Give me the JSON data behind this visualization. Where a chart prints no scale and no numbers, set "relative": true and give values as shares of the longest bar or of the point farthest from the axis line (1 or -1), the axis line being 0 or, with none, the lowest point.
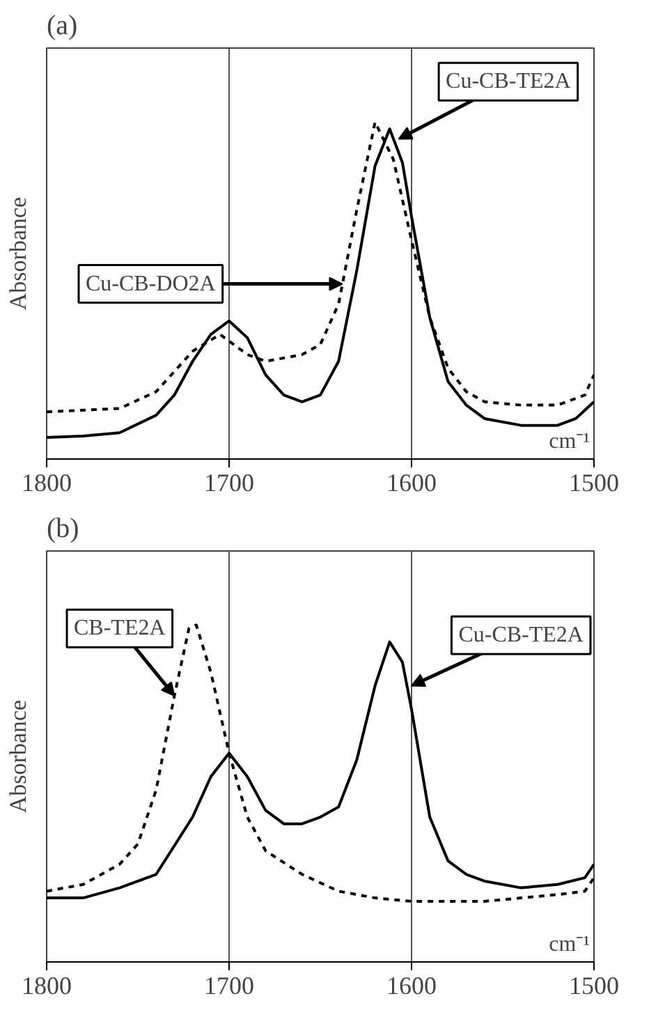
{
  "chart_data": [
    {
      "type": "line",
      "title": "(a)",
      "ylabel": "Absorbance",
      "xlabel": "cm⁻¹",
      "relative": true,
      "xlim": [
        1800,
        1500
      ],
      "xticks": [
        1800,
        1700,
        1600,
        1500
      ],
      "grid": "x",
      "series": [
        {
          "color": "#000000",
          "line_style": "solid",
          "x": [
            1800,
            1780,
            1760,
            1740,
            1730,
            1720,
            1710,
            1700,
            1690,
            1680,
            1670,
            1660,
            1650,
            1640,
            1630,
            1620,
            1612,
            1605,
            1600,
            1590,
            1580,
            1570,
            1560,
            1540,
            1520,
            1510,
            1500
          ],
          "values": [
            0.064,
            0.068,
            0.078,
            0.13,
            0.19,
            0.29,
            0.37,
            0.41,
            0.36,
            0.25,
            0.19,
            0.17,
            0.19,
            0.29,
            0.56,
            0.87,
            0.98,
            0.88,
            0.72,
            0.42,
            0.23,
            0.16,
            0.12,
            0.1,
            0.1,
            0.12,
            0.17
          ]
        },
        {
          "color": "#000000",
          "line_style": "dashed",
          "x": [
            1800,
            1760,
            1740,
            1720,
            1705,
            1690,
            1680,
            1660,
            1650,
            1640,
            1630,
            1620,
            1610,
            1600,
            1590,
            1580,
            1570,
            1560,
            1540,
            1520,
            1505,
            1500
          ],
          "values": [
            0.14,
            0.15,
            0.2,
            0.32,
            0.37,
            0.31,
            0.29,
            0.31,
            0.34,
            0.46,
            0.74,
            1.0,
            0.89,
            0.65,
            0.42,
            0.27,
            0.2,
            0.17,
            0.16,
            0.16,
            0.19,
            0.25
          ]
        }
      ],
      "annotations": [
        {
          "text": "Cu-CB-TE2A",
          "x": 1607,
          "y": 0.95
        },
        {
          "text": "Cu-CB-DO2A",
          "x": 1638,
          "y": 0.52
        }
      ]
    },
    {
      "type": "line",
      "title": "(b)",
      "ylabel": "Absorbance",
      "xlabel": "cm⁻¹",
      "relative": true,
      "xlim": [
        1800,
        1500
      ],
      "xticks": [
        1800,
        1700,
        1600,
        1500
      ],
      "grid": "x",
      "series": [
        {
          "color": "#000000",
          "line_style": "solid",
          "x": [
            1800,
            1780,
            1760,
            1740,
            1720,
            1710,
            1700,
            1690,
            1680,
            1670,
            1660,
            1650,
            1640,
            1630,
            1620,
            1612,
            1605,
            1600,
            1590,
            1580,
            1570,
            1560,
            1540,
            1520,
            1505,
            1500
          ],
          "values": [
            0.19,
            0.19,
            0.22,
            0.26,
            0.43,
            0.55,
            0.62,
            0.55,
            0.45,
            0.41,
            0.41,
            0.43,
            0.46,
            0.6,
            0.82,
            0.95,
            0.89,
            0.75,
            0.43,
            0.3,
            0.26,
            0.24,
            0.22,
            0.23,
            0.25,
            0.29
          ]
        },
        {
          "color": "#000000",
          "line_style": "dashed",
          "x": [
            1800,
            1780,
            1760,
            1750,
            1740,
            1730,
            1722,
            1718,
            1710,
            1700,
            1690,
            1680,
            1660,
            1640,
            1620,
            1600,
            1580,
            1560,
            1540,
            1520,
            1505,
            1500
          ],
          "values": [
            0.21,
            0.23,
            0.29,
            0.35,
            0.51,
            0.79,
            0.99,
            1.0,
            0.86,
            0.62,
            0.43,
            0.33,
            0.26,
            0.21,
            0.19,
            0.18,
            0.18,
            0.18,
            0.19,
            0.2,
            0.21,
            0.25
          ]
        }
      ],
      "annotations": [
        {
          "text": "CB-TE2A",
          "x": 1730,
          "y": 0.79
        },
        {
          "text": "Cu-CB-TE2A",
          "x": 1600,
          "y": 0.82
        }
      ]
    }
  ]
}
